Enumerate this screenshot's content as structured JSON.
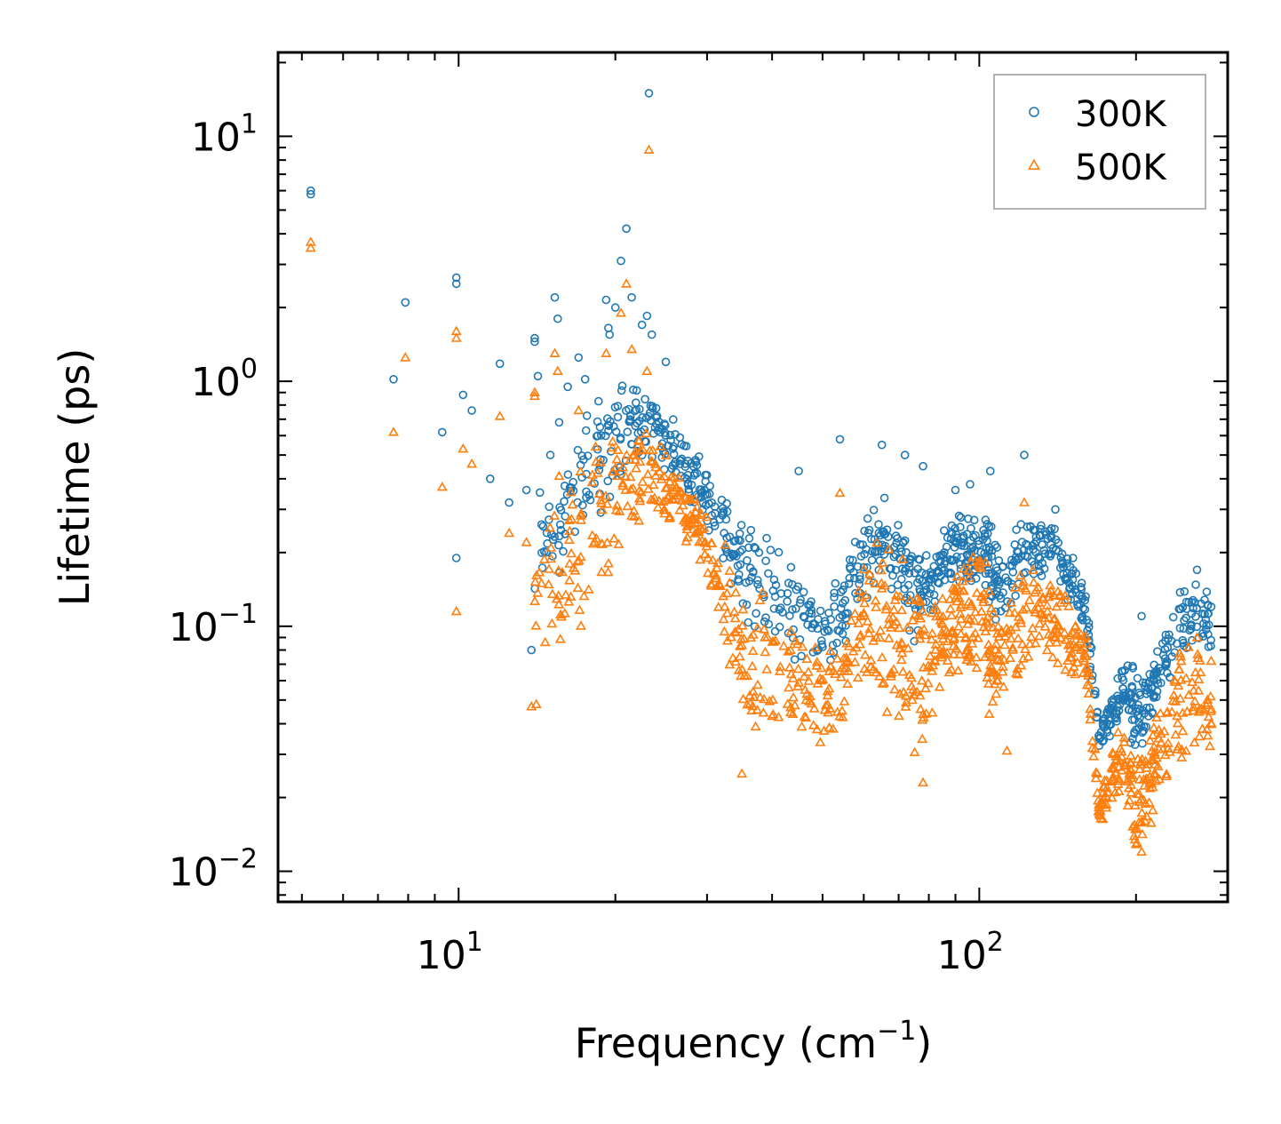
{
  "chart_data": {
    "type": "scatter",
    "scale": "log-log",
    "xlabel": "Frequency (cm",
    "xlabel_sup": "−1",
    "xlabel_end": ")",
    "ylabel": "Lifetime (ps)",
    "xlim": [
      4.5,
      300
    ],
    "ylim": [
      0.0075,
      22
    ],
    "x_ticks": [
      {
        "value": 10,
        "base": "10",
        "exp": "1"
      },
      {
        "value": 100,
        "base": "10",
        "exp": "2"
      }
    ],
    "y_ticks": [
      {
        "value": 10,
        "base": "10",
        "exp": "1"
      },
      {
        "value": 1,
        "base": "10",
        "exp": "0"
      },
      {
        "value": 0.1,
        "base": "10",
        "exp": "−1"
      },
      {
        "value": 0.01,
        "base": "10",
        "exp": "−2"
      }
    ],
    "legend_position": "top-right",
    "series": [
      {
        "name": "300K",
        "marker": "circle",
        "color": "#1f77b4",
        "points": [
          [
            5.2,
            6.0
          ],
          [
            5.2,
            5.8
          ],
          [
            7.5,
            1.02
          ],
          [
            7.9,
            2.1
          ],
          [
            9.3,
            0.62
          ],
          [
            9.9,
            2.65
          ],
          [
            9.9,
            2.5
          ],
          [
            9.9,
            0.19
          ],
          [
            10.2,
            0.88
          ],
          [
            10.6,
            0.76
          ],
          [
            11.5,
            0.4
          ],
          [
            12.0,
            1.18
          ],
          [
            12.5,
            0.32
          ],
          [
            13.5,
            0.36
          ],
          [
            13.8,
            0.08
          ],
          [
            14.0,
            1.5
          ],
          [
            14.0,
            1.45
          ],
          [
            14.2,
            1.05
          ],
          [
            15.0,
            0.5
          ],
          [
            15.3,
            2.2
          ],
          [
            15.5,
            1.8
          ],
          [
            15.6,
            0.68
          ],
          [
            16.2,
            0.95
          ],
          [
            17.0,
            1.25
          ],
          [
            17.5,
            1.02
          ],
          [
            18.5,
            0.6
          ],
          [
            19.2,
            2.15
          ],
          [
            19.4,
            1.65
          ],
          [
            19.5,
            1.55
          ],
          [
            20.0,
            2.0
          ],
          [
            20.5,
            3.1
          ],
          [
            21.0,
            4.2
          ],
          [
            21.5,
            2.2
          ],
          [
            22.5,
            1.7
          ],
          [
            23.0,
            1.85
          ],
          [
            23.2,
            15.0
          ],
          [
            23.5,
            1.55
          ],
          [
            25.0,
            1.2
          ],
          [
            54.0,
            0.58
          ],
          [
            45.0,
            0.43
          ],
          [
            65.0,
            0.55
          ],
          [
            72.0,
            0.5
          ],
          [
            78.0,
            0.45
          ],
          [
            105.0,
            0.43
          ],
          [
            122.0,
            0.5
          ],
          [
            96.0,
            0.38
          ],
          [
            90.0,
            0.36
          ],
          [
            140.0,
            0.3
          ],
          [
            205.0,
            0.11
          ],
          [
            262.0,
            0.17
          ]
        ],
        "trend": [
          [
            14.0,
            0.09,
            0.45
          ],
          [
            16.0,
            0.14,
            0.6
          ],
          [
            18.0,
            0.2,
            0.95
          ],
          [
            20.0,
            0.35,
            1.2
          ],
          [
            22.0,
            0.45,
            1.1
          ],
          [
            24.0,
            0.45,
            0.9
          ],
          [
            26.0,
            0.38,
            0.7
          ],
          [
            28.0,
            0.3,
            0.55
          ],
          [
            30.0,
            0.24,
            0.45
          ],
          [
            33.0,
            0.15,
            0.35
          ],
          [
            36.0,
            0.1,
            0.3
          ],
          [
            40.0,
            0.08,
            0.24
          ],
          [
            45.0,
            0.07,
            0.17
          ],
          [
            50.0,
            0.06,
            0.15
          ],
          [
            55.0,
            0.08,
            0.18
          ],
          [
            60.0,
            0.12,
            0.3
          ],
          [
            65.0,
            0.15,
            0.38
          ],
          [
            70.0,
            0.12,
            0.3
          ],
          [
            75.0,
            0.08,
            0.22
          ],
          [
            80.0,
            0.1,
            0.2
          ],
          [
            85.0,
            0.14,
            0.26
          ],
          [
            90.0,
            0.15,
            0.3
          ],
          [
            95.0,
            0.14,
            0.3
          ],
          [
            100.0,
            0.13,
            0.3
          ],
          [
            105.0,
            0.12,
            0.28
          ],
          [
            110.0,
            0.09,
            0.24
          ],
          [
            120.0,
            0.14,
            0.28
          ],
          [
            130.0,
            0.16,
            0.28
          ],
          [
            140.0,
            0.15,
            0.26
          ],
          [
            150.0,
            0.12,
            0.2
          ],
          [
            160.0,
            0.09,
            0.15
          ],
          [
            170.0,
            0.03,
            0.04
          ],
          [
            180.0,
            0.035,
            0.055
          ],
          [
            190.0,
            0.04,
            0.075
          ],
          [
            200.0,
            0.025,
            0.07
          ],
          [
            210.0,
            0.035,
            0.06
          ],
          [
            220.0,
            0.045,
            0.09
          ],
          [
            240.0,
            0.07,
            0.15
          ],
          [
            260.0,
            0.08,
            0.16
          ],
          [
            280.0,
            0.07,
            0.14
          ]
        ]
      },
      {
        "name": "500K",
        "marker": "triangle",
        "color": "#ff7f0e",
        "points": [
          [
            5.2,
            3.7
          ],
          [
            5.2,
            3.5
          ],
          [
            7.5,
            0.62
          ],
          [
            7.9,
            1.25
          ],
          [
            9.3,
            0.37
          ],
          [
            9.9,
            1.6
          ],
          [
            9.9,
            1.5
          ],
          [
            9.9,
            0.115
          ],
          [
            10.2,
            0.53
          ],
          [
            10.6,
            0.46
          ],
          [
            12.0,
            0.72
          ],
          [
            12.5,
            0.24
          ],
          [
            13.5,
            0.22
          ],
          [
            13.8,
            0.047
          ],
          [
            14.1,
            0.048
          ],
          [
            14.0,
            0.9
          ],
          [
            14.0,
            0.87
          ],
          [
            15.3,
            1.3
          ],
          [
            15.5,
            1.1
          ],
          [
            15.6,
            0.41
          ],
          [
            17.0,
            0.76
          ],
          [
            19.2,
            1.3
          ],
          [
            20.5,
            1.9
          ],
          [
            21.0,
            2.5
          ],
          [
            21.5,
            1.35
          ],
          [
            23.0,
            1.1
          ],
          [
            23.2,
            8.8
          ],
          [
            54.0,
            0.35
          ],
          [
            122.0,
            0.32
          ],
          [
            205.0,
            0.012
          ],
          [
            262.0,
            0.09
          ],
          [
            78.0,
            0.023
          ],
          [
            35.0,
            0.025
          ],
          [
            113.0,
            0.031
          ]
        ],
        "trend": [
          [
            14.0,
            0.07,
            0.3
          ],
          [
            16.0,
            0.08,
            0.4
          ],
          [
            18.0,
            0.09,
            0.6
          ],
          [
            20.0,
            0.15,
            0.75
          ],
          [
            22.0,
            0.25,
            0.7
          ],
          [
            24.0,
            0.28,
            0.6
          ],
          [
            26.0,
            0.25,
            0.45
          ],
          [
            28.0,
            0.2,
            0.38
          ],
          [
            30.0,
            0.15,
            0.3
          ],
          [
            33.0,
            0.06,
            0.22
          ],
          [
            36.0,
            0.03,
            0.17
          ],
          [
            40.0,
            0.04,
            0.13
          ],
          [
            45.0,
            0.035,
            0.1
          ],
          [
            50.0,
            0.03,
            0.09
          ],
          [
            55.0,
            0.04,
            0.1
          ],
          [
            60.0,
            0.05,
            0.2
          ],
          [
            65.0,
            0.04,
            0.3
          ],
          [
            70.0,
            0.035,
            0.22
          ],
          [
            75.0,
            0.025,
            0.18
          ],
          [
            80.0,
            0.035,
            0.15
          ],
          [
            85.0,
            0.05,
            0.17
          ],
          [
            90.0,
            0.06,
            0.2
          ],
          [
            95.0,
            0.05,
            0.22
          ],
          [
            100.0,
            0.05,
            0.22
          ],
          [
            105.0,
            0.04,
            0.18
          ],
          [
            110.0,
            0.035,
            0.14
          ],
          [
            120.0,
            0.06,
            0.2
          ],
          [
            130.0,
            0.07,
            0.2
          ],
          [
            140.0,
            0.06,
            0.18
          ],
          [
            150.0,
            0.05,
            0.14
          ],
          [
            160.0,
            0.06,
            0.1
          ],
          [
            170.0,
            0.015,
            0.02
          ],
          [
            180.0,
            0.018,
            0.035
          ],
          [
            190.0,
            0.02,
            0.045
          ],
          [
            200.0,
            0.011,
            0.03
          ],
          [
            210.0,
            0.013,
            0.03
          ],
          [
            220.0,
            0.018,
            0.05
          ],
          [
            240.0,
            0.025,
            0.09
          ],
          [
            260.0,
            0.03,
            0.1
          ],
          [
            280.0,
            0.03,
            0.08
          ]
        ]
      }
    ]
  }
}
